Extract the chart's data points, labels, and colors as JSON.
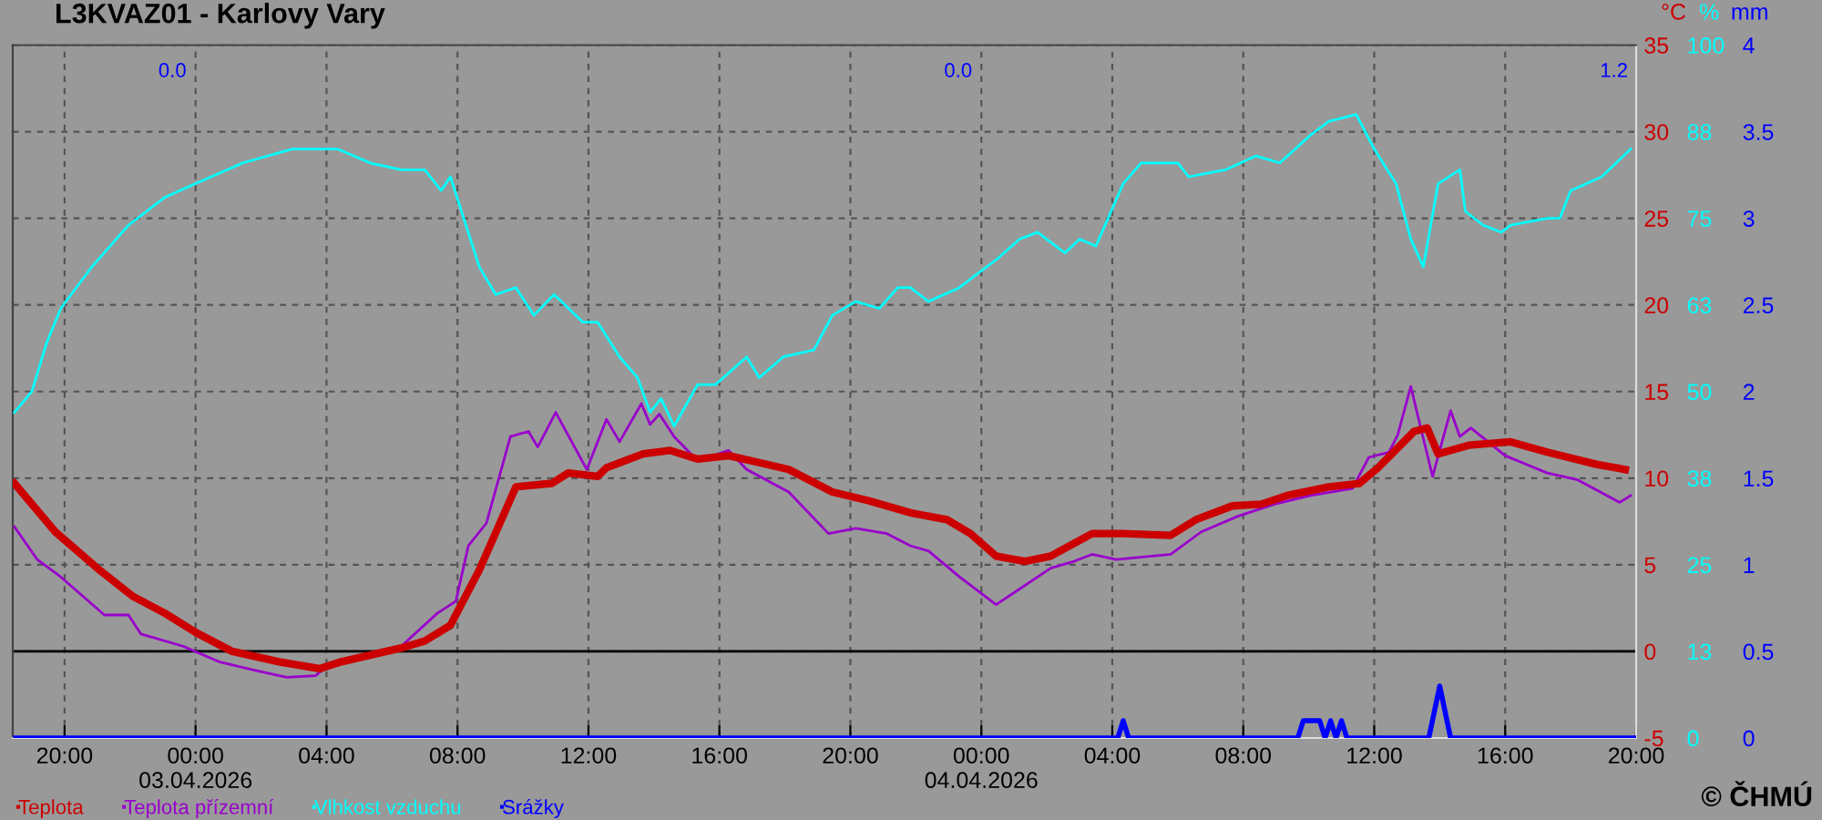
{
  "chart_data": {
    "type": "line",
    "title": "L3KVAZ01 - Karlovy Vary",
    "ylabel": "°C",
    "y2label": "%",
    "y3label": "mm",
    "xlim": [
      "2026-04-02T18:25",
      "2026-04-04T20:00"
    ],
    "xticks": [
      {
        "value": "2026-04-02T20:00",
        "label": "20:00"
      },
      {
        "value": "2026-04-03T00:00",
        "label": "00:00\n03.04.2026"
      },
      {
        "value": "2026-04-03T04:00",
        "label": "04:00"
      },
      {
        "value": "2026-04-03T08:00",
        "label": "08:00"
      },
      {
        "value": "2026-04-03T12:00",
        "label": "12:00"
      },
      {
        "value": "2026-04-03T16:00",
        "label": "16:00"
      },
      {
        "value": "2026-04-03T20:00",
        "label": "20:00"
      },
      {
        "value": "2026-04-04T00:00",
        "label": "00:00\n04.04.2026"
      },
      {
        "value": "2026-04-04T04:00",
        "label": "04:00"
      },
      {
        "value": "2026-04-04T08:00",
        "label": "08:00"
      },
      {
        "value": "2026-04-04T12:00",
        "label": "12:00"
      },
      {
        "value": "2026-04-04T16:00",
        "label": "16:00"
      },
      {
        "value": "2026-04-04T20:00",
        "label": "20:00"
      }
    ],
    "ylim": [
      -5,
      35
    ],
    "yticks": [
      -5,
      0,
      5,
      10,
      15,
      20,
      25,
      30,
      35
    ],
    "y2lim": [
      0,
      100
    ],
    "y2ticks": [
      0,
      {
        "value": 12.5,
        "label": "13"
      },
      25,
      {
        "value": 37.5,
        "label": "38"
      },
      50,
      {
        "value": 62.5,
        "label": "63"
      },
      75,
      {
        "value": 87.5,
        "label": "88"
      },
      100
    ],
    "y3lim": [
      0,
      4
    ],
    "y3ticks": [
      0,
      0.5,
      1,
      1.5,
      2,
      2.5,
      3,
      3.5,
      4
    ],
    "grid": true,
    "legend": "bottom left",
    "ref_lines": [
      {
        "axis": "y",
        "value": 0,
        "color": "#000000"
      }
    ],
    "annotations": [
      "0.0",
      "0.0",
      "1.2",
      "© ČHMÚ"
    ],
    "series": [
      {
        "name": "Teplota",
        "color": "#cc0000",
        "x": [
          "2026-04-02T18:28",
          "2026-04-02T19:43",
          "2026-04-02T21:00",
          "2026-04-02T22:04",
          "2026-04-02T23:04",
          "2026-04-03T00:00",
          "2026-04-03T01:07",
          "2026-04-03T02:33",
          "2026-04-03T03:47",
          "2026-04-03T04:27",
          "2026-04-03T06:17",
          "2026-04-03T07:00",
          "2026-04-03T07:47",
          "2026-04-03T08:40",
          "2026-04-03T09:47",
          "2026-04-03T10:53",
          "2026-04-03T11:23",
          "2026-04-03T12:17",
          "2026-04-03T12:33",
          "2026-04-03T13:40",
          "2026-04-03T14:30",
          "2026-04-03T15:20",
          "2026-04-03T16:17",
          "2026-04-03T17:13",
          "2026-04-03T18:07",
          "2026-04-03T19:27",
          "2026-04-03T20:33",
          "2026-04-03T21:50",
          "2026-04-03T22:57",
          "2026-04-03T23:40",
          "2026-04-04T00:27",
          "2026-04-04T01:20",
          "2026-04-04T02:07",
          "2026-04-04T03:23",
          "2026-04-04T04:20",
          "2026-04-04T05:47",
          "2026-04-04T06:33",
          "2026-04-04T07:40",
          "2026-04-04T08:33",
          "2026-04-04T09:20",
          "2026-04-04T10:37",
          "2026-04-04T11:33",
          "2026-04-04T12:07",
          "2026-04-04T13:13",
          "2026-04-04T13:37",
          "2026-04-04T13:57",
          "2026-04-04T14:53",
          "2026-04-04T16:10",
          "2026-04-04T17:17",
          "2026-04-04T18:47",
          "2026-04-04T19:40"
        ],
        "values": [
          9.7,
          6.9,
          4.8,
          3.2,
          2.2,
          1.1,
          0.0,
          -0.6,
          -1.0,
          -0.6,
          0.2,
          0.6,
          1.5,
          4.7,
          9.5,
          9.7,
          10.3,
          10.1,
          10.6,
          11.4,
          11.6,
          11.1,
          11.3,
          10.9,
          10.5,
          9.2,
          8.7,
          8.0,
          7.6,
          6.8,
          5.5,
          5.2,
          5.5,
          6.8,
          6.8,
          6.7,
          7.6,
          8.4,
          8.5,
          9.0,
          9.5,
          9.7,
          10.6,
          12.7,
          12.9,
          11.4,
          11.9,
          12.1,
          11.5,
          10.8,
          10.5
        ]
      },
      {
        "name": "Teplota přízemní",
        "color": "#9900cc",
        "x": [
          "2026-04-02T18:28",
          "2026-04-02T19:10",
          "2026-04-02T19:53",
          "2026-04-02T21:13",
          "2026-04-02T21:57",
          "2026-04-02T22:20",
          "2026-04-02T23:37",
          "2026-04-03T00:43",
          "2026-04-03T01:50",
          "2026-04-03T02:47",
          "2026-04-03T03:40",
          "2026-04-03T04:03",
          "2026-04-03T06:17",
          "2026-04-03T07:23",
          "2026-04-03T07:57",
          "2026-04-03T08:20",
          "2026-04-03T08:53",
          "2026-04-03T09:37",
          "2026-04-03T10:10",
          "2026-04-03T10:27",
          "2026-04-03T11:00",
          "2026-04-03T11:57",
          "2026-04-03T12:33",
          "2026-04-03T12:57",
          "2026-04-03T13:37",
          "2026-04-03T13:53",
          "2026-04-03T14:10",
          "2026-04-03T14:37",
          "2026-04-03T15:20",
          "2026-04-03T16:17",
          "2026-04-03T16:50",
          "2026-04-03T18:07",
          "2026-04-03T19:20",
          "2026-04-03T20:10",
          "2026-04-03T21:07",
          "2026-04-03T21:50",
          "2026-04-03T22:23",
          "2026-04-03T23:20",
          "2026-04-04T00:27",
          "2026-04-04T01:10",
          "2026-04-04T02:07",
          "2026-04-04T02:50",
          "2026-04-04T03:23",
          "2026-04-04T04:07",
          "2026-04-04T05:47",
          "2026-04-04T06:43",
          "2026-04-04T07:50",
          "2026-04-04T08:57",
          "2026-04-04T10:03",
          "2026-04-04T11:20",
          "2026-04-04T11:50",
          "2026-04-04T12:27",
          "2026-04-04T12:43",
          "2026-04-04T13:07",
          "2026-04-04T13:23",
          "2026-04-04T13:47",
          "2026-04-04T14:20",
          "2026-04-04T14:37",
          "2026-04-04T14:57",
          "2026-04-04T16:00",
          "2026-04-04T17:17",
          "2026-04-04T18:13",
          "2026-04-04T19:30",
          "2026-04-04T19:50"
        ],
        "values": [
          7.2,
          5.3,
          4.3,
          2.1,
          2.1,
          1.0,
          0.3,
          -0.6,
          -1.1,
          -1.5,
          -1.4,
          -0.8,
          0.3,
          2.2,
          2.9,
          6.1,
          7.4,
          12.4,
          12.7,
          11.8,
          13.8,
          10.5,
          13.4,
          12.1,
          14.3,
          13.1,
          13.7,
          12.4,
          11.0,
          11.6,
          10.5,
          9.2,
          6.8,
          7.1,
          6.8,
          6.1,
          5.8,
          4.3,
          2.7,
          3.6,
          4.8,
          5.2,
          5.6,
          5.3,
          5.6,
          6.9,
          7.8,
          8.5,
          9.0,
          9.4,
          11.2,
          11.5,
          12.5,
          15.3,
          13.2,
          10.1,
          13.9,
          12.4,
          12.9,
          11.3,
          10.3,
          9.9,
          8.6,
          9.0
        ]
      },
      {
        "name": "Vlhkost vzduchu",
        "color": "#00ffff",
        "axis": "y2",
        "x": [
          "2026-04-02T18:28",
          "2026-04-02T19:00",
          "2026-04-02T19:27",
          "2026-04-02T19:53",
          "2026-04-02T20:50",
          "2026-04-02T21:57",
          "2026-04-02T23:03",
          "2026-04-03T00:00",
          "2026-04-03T01:27",
          "2026-04-03T02:57",
          "2026-04-03T04:20",
          "2026-04-03T05:20",
          "2026-04-03T06:17",
          "2026-04-03T07:00",
          "2026-04-03T07:30",
          "2026-04-03T07:47",
          "2026-04-03T08:40",
          "2026-04-03T09:10",
          "2026-04-03T09:47",
          "2026-04-03T10:20",
          "2026-04-03T10:57",
          "2026-04-03T11:50",
          "2026-04-03T12:17",
          "2026-04-03T12:57",
          "2026-04-03T13:30",
          "2026-04-03T13:53",
          "2026-04-03T14:13",
          "2026-04-03T14:37",
          "2026-04-03T15:20",
          "2026-04-03T15:53",
          "2026-04-03T16:50",
          "2026-04-03T17:13",
          "2026-04-03T17:57",
          "2026-04-03T18:53",
          "2026-04-03T19:27",
          "2026-04-03T20:10",
          "2026-04-03T20:53",
          "2026-04-03T21:27",
          "2026-04-03T21:50",
          "2026-04-03T22:23",
          "2026-04-03T23:20",
          "2026-04-03T23:53",
          "2026-04-04T00:27",
          "2026-04-04T01:10",
          "2026-04-04T01:43",
          "2026-04-04T02:33",
          "2026-04-04T03:00",
          "2026-04-04T03:30",
          "2026-04-04T04:20",
          "2026-04-04T04:53",
          "2026-04-04T06:00",
          "2026-04-04T06:20",
          "2026-04-04T07:27",
          "2026-04-04T08:23",
          "2026-04-04T09:07",
          "2026-04-04T10:03",
          "2026-04-04T10:37",
          "2026-04-04T11:27",
          "2026-04-04T12:00",
          "2026-04-04T12:40",
          "2026-04-04T13:07",
          "2026-04-04T13:30",
          "2026-04-04T13:57",
          "2026-04-04T14:37",
          "2026-04-04T14:47",
          "2026-04-04T15:20",
          "2026-04-04T15:53",
          "2026-04-04T16:10",
          "2026-04-04T17:17",
          "2026-04-04T17:40",
          "2026-04-04T18:00",
          "2026-04-04T18:57",
          "2026-04-04T19:50"
        ],
        "values": [
          47,
          50,
          57,
          62,
          68,
          74,
          78,
          80,
          83,
          85,
          85,
          83,
          82,
          82,
          79,
          81,
          68,
          64,
          65,
          61,
          64,
          60,
          60,
          55,
          52,
          47,
          49,
          45,
          51,
          51,
          55,
          52,
          55,
          56,
          61,
          63,
          62,
          65,
          65,
          63,
          65,
          67,
          69,
          72,
          73,
          70,
          72,
          71,
          80,
          83,
          83,
          81,
          82,
          84,
          83,
          87,
          89,
          90,
          85,
          80,
          72,
          68,
          80,
          82,
          76,
          74,
          73,
          74,
          75,
          75,
          79,
          81,
          85
        ]
      },
      {
        "name": "Srážky",
        "color": "#0000ff",
        "axis": "y3",
        "x": [
          "2026-04-02T18:30",
          "2026-04-04T04:10",
          "2026-04-04T04:20",
          "2026-04-04T04:30",
          "2026-04-04T09:40",
          "2026-04-04T09:50",
          "2026-04-04T10:20",
          "2026-04-04T10:30",
          "2026-04-04T10:40",
          "2026-04-04T10:50",
          "2026-04-04T11:00",
          "2026-04-04T11:10",
          "2026-04-04T13:40",
          "2026-04-04T14:00",
          "2026-04-04T14:20",
          "2026-04-04T20:00"
        ],
        "values": [
          0,
          0,
          0.1,
          0,
          0,
          0.1,
          0.1,
          0,
          0.1,
          0,
          0.1,
          0,
          0,
          0.3,
          0,
          0
        ]
      }
    ]
  }
}
